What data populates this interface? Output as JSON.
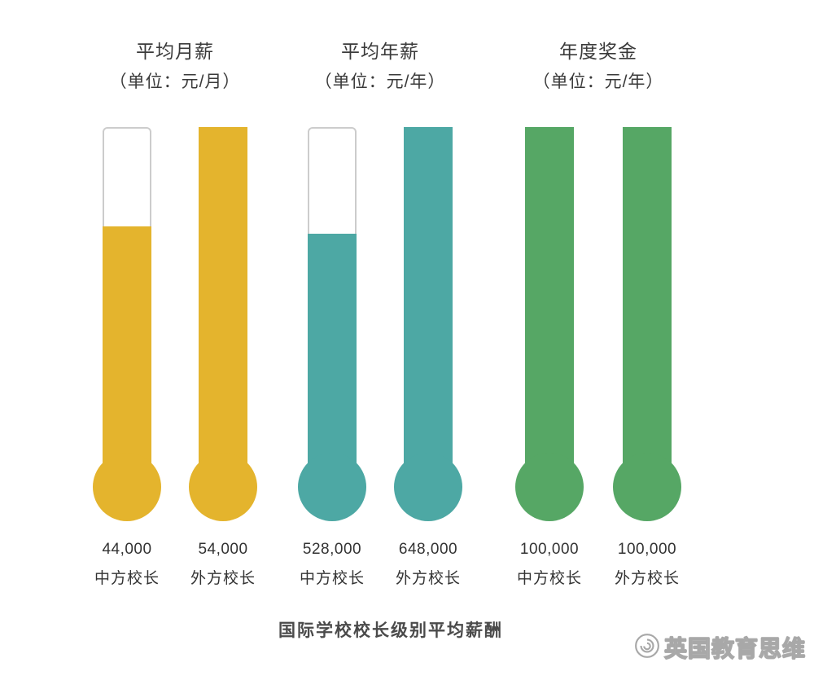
{
  "chart_data": {
    "type": "bar",
    "style": "thermometer",
    "title": "国际学校校长级别平均薪酬",
    "empty_tube_border_color": "#CCCCCC",
    "groups": [
      {
        "title": "平均月薪",
        "unit": "（单位：元/月）",
        "color": "#E4B42D",
        "bars": [
          {
            "label": "中方校长",
            "value": 44000,
            "display": "44,000",
            "fill_percent": 73
          },
          {
            "label": "外方校长",
            "value": 54000,
            "display": "54,000",
            "fill_percent": 100
          }
        ]
      },
      {
        "title": "平均年薪",
        "unit": "（单位：元/年）",
        "color": "#4DA8A4",
        "bars": [
          {
            "label": "中方校长",
            "value": 528000,
            "display": "528,000",
            "fill_percent": 71
          },
          {
            "label": "外方校长",
            "value": 648000,
            "display": "648,000",
            "fill_percent": 100
          }
        ]
      },
      {
        "title": "年度奖金",
        "unit": "（单位：元/年）",
        "color": "#56A765",
        "bars": [
          {
            "label": "中方校长",
            "value": 100000,
            "display": "100,000",
            "fill_percent": 100
          },
          {
            "label": "外方校长",
            "value": 100000,
            "display": "100,000",
            "fill_percent": 100
          }
        ]
      }
    ]
  },
  "watermark": {
    "text": "英国教育思维"
  }
}
